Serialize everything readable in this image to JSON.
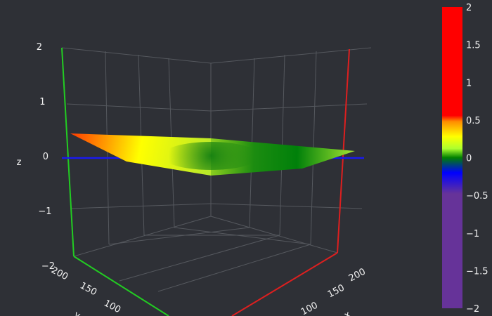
{
  "chart_data": {
    "type": "surface3d",
    "title": "",
    "axes": {
      "x": {
        "title": "x",
        "ticks": [
          100,
          150,
          200
        ]
      },
      "y": {
        "title": "y",
        "ticks": [
          100,
          150,
          200
        ]
      },
      "z": {
        "title": "z",
        "ticks": [
          {
            "value": 2,
            "label": "2"
          },
          {
            "value": 1,
            "label": "1"
          },
          {
            "value": 0,
            "label": "0"
          },
          {
            "value": -1,
            "label": "−1"
          },
          {
            "value": -2,
            "label": "−2"
          }
        ],
        "range": [
          -2,
          2
        ]
      }
    },
    "colors": {
      "background": "#2e3036",
      "grid": "#5a5d63",
      "x_axis_line": "#dd1f1f",
      "y_axis_line": "#22cc22",
      "z_zero_line": "#1a1aee"
    },
    "colorbar": {
      "range": [
        -2,
        2
      ],
      "ticks": [
        {
          "value": 2,
          "label": "2"
        },
        {
          "value": 1.5,
          "label": "1.5"
        },
        {
          "value": 1,
          "label": "1"
        },
        {
          "value": 0.5,
          "label": "0.5"
        },
        {
          "value": 0,
          "label": "0"
        },
        {
          "value": -0.5,
          "label": "−0.5"
        },
        {
          "value": -1,
          "label": "−1"
        },
        {
          "value": -1.5,
          "label": "−1.5"
        },
        {
          "value": -2,
          "label": "−2"
        }
      ],
      "colorscale": [
        [
          0.0,
          "#663399"
        ],
        [
          0.38,
          "#663399"
        ],
        [
          0.45,
          "#0000ff"
        ],
        [
          0.5,
          "#008000"
        ],
        [
          0.53,
          "#adff2f"
        ],
        [
          0.57,
          "#ffff00"
        ],
        [
          0.62,
          "#ff8c00"
        ],
        [
          0.64,
          "#ff0000"
        ],
        [
          1.0,
          "#ff0000"
        ]
      ]
    }
  }
}
